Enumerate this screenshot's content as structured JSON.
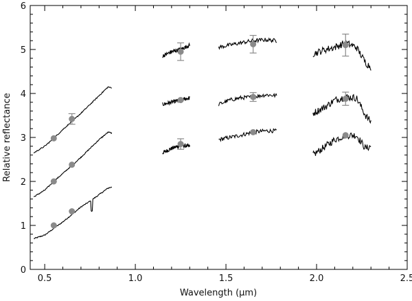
{
  "chart_data": {
    "type": "line",
    "title": "",
    "xlabel": "Wavelength (μm)",
    "ylabel": "Relative reflectance",
    "xlim": [
      0.42,
      2.5
    ],
    "ylim": [
      0,
      6
    ],
    "x_ticks": [
      "0.5",
      "1.0",
      "1.5",
      "2.0",
      "2.5"
    ],
    "y_ticks": [
      "0",
      "1",
      "2",
      "3",
      "4",
      "5",
      "6"
    ],
    "grid": false,
    "legend": "none",
    "colors": {
      "spectrum": "#000000",
      "photometry": "#8a8a8a"
    },
    "series": [
      {
        "segments": [
          {
            "x": [
              0.44,
              0.5,
              0.55,
              0.6,
              0.66,
              0.7,
              0.75,
              0.8,
              0.85,
              0.87
            ],
            "y": [
              0.7,
              0.78,
              0.93,
              1.08,
              1.28,
              1.42,
              1.55,
              1.7,
              1.85,
              1.87
            ]
          },
          {
            "x": [
              1.15,
              1.2,
              1.25,
              1.3
            ],
            "y": [
              2.65,
              2.75,
              2.82,
              2.8
            ]
          },
          {
            "x": [
              1.46,
              1.52,
              1.58,
              1.65,
              1.72,
              1.78
            ],
            "y": [
              2.95,
              3.0,
              3.05,
              3.12,
              3.15,
              3.15
            ]
          },
          {
            "x": [
              1.98,
              2.05,
              2.1,
              2.16,
              2.22,
              2.27,
              2.3
            ],
            "y": [
              2.6,
              2.8,
              2.95,
              3.05,
              3.05,
              2.75,
              2.8
            ]
          }
        ],
        "markers": {
          "x": [
            0.55,
            0.65,
            1.25,
            1.65,
            2.16
          ],
          "y": [
            1.0,
            1.32,
            2.85,
            3.12,
            3.05
          ]
        }
      },
      {
        "segments": [
          {
            "x": [
              0.44,
              0.5,
              0.55,
              0.6,
              0.66,
              0.7,
              0.75,
              0.8,
              0.85,
              0.87
            ],
            "y": [
              1.65,
              1.8,
              2.0,
              2.18,
              2.4,
              2.55,
              2.75,
              2.95,
              3.12,
              3.1
            ]
          },
          {
            "x": [
              1.15,
              1.2,
              1.25,
              1.3
            ],
            "y": [
              3.75,
              3.8,
              3.85,
              3.9
            ]
          },
          {
            "x": [
              1.46,
              1.52,
              1.58,
              1.65,
              1.72,
              1.78
            ],
            "y": [
              3.75,
              3.85,
              3.9,
              3.92,
              3.97,
              3.95
            ]
          },
          {
            "x": [
              1.98,
              2.05,
              2.1,
              2.16,
              2.22,
              2.27,
              2.3
            ],
            "y": [
              3.55,
              3.7,
              3.85,
              3.92,
              3.9,
              3.5,
              3.35
            ]
          }
        ],
        "markers": {
          "x": [
            0.55,
            0.65,
            1.25,
            1.65,
            2.16
          ],
          "y": [
            2.0,
            2.38,
            3.85,
            3.92,
            3.88
          ]
        }
      },
      {
        "segments": [
          {
            "x": [
              0.44,
              0.5,
              0.55,
              0.6,
              0.66,
              0.7,
              0.75,
              0.8,
              0.85,
              0.87
            ],
            "y": [
              2.65,
              2.8,
              2.98,
              3.18,
              3.4,
              3.55,
              3.75,
              3.95,
              4.15,
              4.12
            ]
          },
          {
            "x": [
              1.15,
              1.2,
              1.25,
              1.3
            ],
            "y": [
              4.85,
              4.95,
              5.0,
              5.1
            ]
          },
          {
            "x": [
              1.46,
              1.52,
              1.58,
              1.65,
              1.72,
              1.78
            ],
            "y": [
              5.05,
              5.1,
              5.15,
              5.2,
              5.22,
              5.2
            ]
          },
          {
            "x": [
              1.98,
              2.05,
              2.1,
              2.16,
              2.22,
              2.27,
              2.3
            ],
            "y": [
              4.9,
              5.0,
              5.05,
              5.15,
              5.05,
              4.7,
              4.6
            ]
          }
        ],
        "markers": {
          "x": [
            0.55,
            0.65,
            1.25,
            1.65,
            2.16
          ],
          "y": [
            2.98,
            3.42,
            4.95,
            5.12,
            5.1
          ]
        }
      }
    ],
    "error_bars": [
      {
        "x": 0.65,
        "y": 3.42,
        "err": 0.12
      },
      {
        "x": 1.25,
        "y": 2.85,
        "err": 0.12
      },
      {
        "x": 1.25,
        "y": 4.95,
        "err": 0.2
      },
      {
        "x": 1.65,
        "y": 3.92,
        "err": 0.1
      },
      {
        "x": 1.65,
        "y": 5.12,
        "err": 0.2
      },
      {
        "x": 2.16,
        "y": 3.88,
        "err": 0.15
      },
      {
        "x": 2.16,
        "y": 5.1,
        "err": 0.25
      }
    ]
  }
}
